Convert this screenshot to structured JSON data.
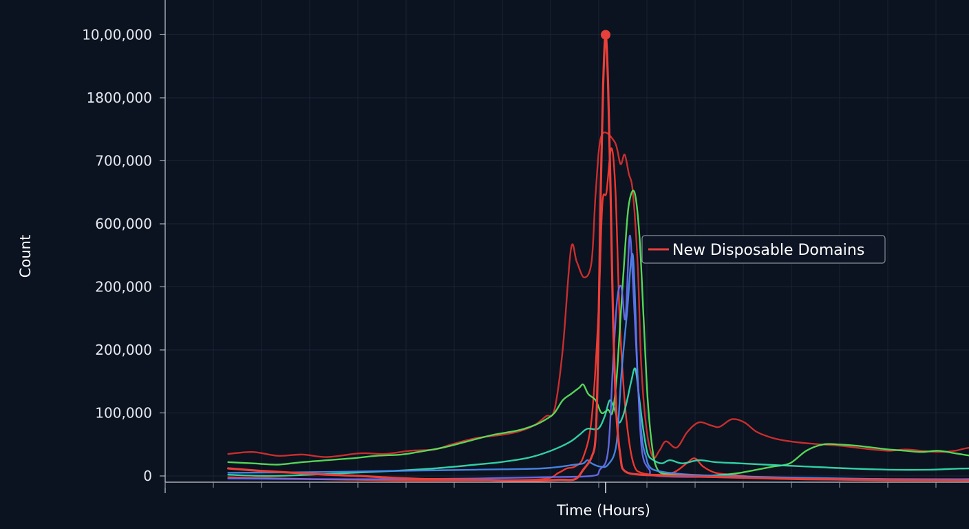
{
  "chart_data": {
    "type": "line",
    "xlabel": "Time (Hours)",
    "ylabel": "Count",
    "y_tick_labels": [
      "0",
      "100,000",
      "200,000",
      "200,000",
      "600,000",
      "700,000",
      "1800,000",
      "10,00,000"
    ],
    "ylim": [
      0,
      7
    ],
    "xlim": [
      0,
      100
    ],
    "grid": true,
    "legend": {
      "placement": "right",
      "entries": [
        "New Disposable Domains"
      ]
    },
    "series": [
      {
        "name": "New Disposable Domains",
        "color": "#e8403a",
        "peak_marker": true,
        "points": [
          [
            0,
            0.12
          ],
          [
            4,
            0.08
          ],
          [
            8,
            0.05
          ],
          [
            12,
            0.02
          ],
          [
            16,
            0.0
          ],
          [
            20,
            -0.03
          ],
          [
            24,
            -0.05
          ],
          [
            30,
            -0.06
          ],
          [
            36,
            -0.08
          ],
          [
            40,
            -0.06
          ],
          [
            42,
            -0.05
          ],
          [
            43,
            0.1
          ],
          [
            44,
            0.3
          ],
          [
            44.5,
            0.65
          ],
          [
            44.8,
            2.0
          ],
          [
            45.1,
            4.5
          ],
          [
            45.4,
            6.2
          ],
          [
            45.7,
            7.0
          ],
          [
            46.0,
            6.2
          ],
          [
            46.3,
            4.5
          ],
          [
            46.6,
            2.5
          ],
          [
            47,
            1.0
          ],
          [
            47.5,
            0.3
          ],
          [
            48,
            0.08
          ],
          [
            50,
            0.02
          ],
          [
            55,
            0.0
          ],
          [
            60,
            -0.02
          ],
          [
            70,
            -0.05
          ],
          [
            80,
            -0.06
          ],
          [
            90,
            -0.07
          ],
          [
            100,
            -0.07
          ]
        ]
      },
      {
        "color": "#d9312f",
        "points": [
          [
            0,
            0.35
          ],
          [
            3,
            0.38
          ],
          [
            6,
            0.32
          ],
          [
            9,
            0.34
          ],
          [
            12,
            0.3
          ],
          [
            16,
            0.36
          ],
          [
            19,
            0.35
          ],
          [
            22,
            0.4
          ],
          [
            25,
            0.42
          ],
          [
            27,
            0.5
          ],
          [
            30,
            0.6
          ],
          [
            33,
            0.65
          ],
          [
            35,
            0.7
          ],
          [
            37,
            0.8
          ],
          [
            38.5,
            0.95
          ],
          [
            39.5,
            1.05
          ],
          [
            40.5,
            2.0
          ],
          [
            41.5,
            3.6
          ],
          [
            42.2,
            3.4
          ],
          [
            43.1,
            3.15
          ],
          [
            44,
            3.4
          ],
          [
            44.5,
            4.5
          ],
          [
            45.2,
            5.4
          ],
          [
            46.8,
            5.3
          ],
          [
            47.5,
            4.95
          ],
          [
            48,
            5.1
          ],
          [
            48.5,
            4.8
          ],
          [
            49,
            4.5
          ],
          [
            49.6,
            3.3
          ],
          [
            50,
            1.8
          ],
          [
            50.6,
            0.8
          ],
          [
            51.4,
            0.3
          ],
          [
            52.2,
            0.4
          ],
          [
            53,
            0.55
          ],
          [
            54.3,
            0.45
          ],
          [
            55.6,
            0.7
          ],
          [
            57,
            0.85
          ],
          [
            58.5,
            0.8
          ],
          [
            59.5,
            0.78
          ],
          [
            61,
            0.9
          ],
          [
            62.5,
            0.85
          ],
          [
            64,
            0.7
          ],
          [
            66,
            0.6
          ],
          [
            68,
            0.55
          ],
          [
            70,
            0.52
          ],
          [
            72,
            0.5
          ],
          [
            74,
            0.48
          ],
          [
            76,
            0.45
          ],
          [
            78,
            0.42
          ],
          [
            80,
            0.4
          ],
          [
            82,
            0.42
          ],
          [
            84,
            0.4
          ],
          [
            86,
            0.38
          ],
          [
            88,
            0.4
          ],
          [
            90,
            0.45
          ],
          [
            92,
            0.4
          ],
          [
            94,
            0.42
          ],
          [
            96,
            0.4
          ],
          [
            98,
            0.4
          ],
          [
            100,
            0.38
          ]
        ]
      },
      {
        "color": "#ff3b30",
        "points": [
          [
            0,
            -0.02
          ],
          [
            10,
            -0.05
          ],
          [
            20,
            -0.07
          ],
          [
            30,
            -0.07
          ],
          [
            38,
            -0.05
          ],
          [
            40,
            0.05
          ],
          [
            41,
            0.12
          ],
          [
            42,
            0.15
          ],
          [
            43,
            0.3
          ],
          [
            44,
            0.9
          ],
          [
            44.8,
            2.5
          ],
          [
            45.3,
            4.3
          ],
          [
            45.8,
            4.5
          ],
          [
            46.4,
            5.2
          ],
          [
            46.9,
            4.5
          ],
          [
            47.4,
            2.5
          ],
          [
            48,
            1.2
          ],
          [
            48.6,
            0.5
          ],
          [
            49.2,
            0.15
          ],
          [
            50,
            0.05
          ],
          [
            52,
            0.02
          ],
          [
            54,
            0.06
          ],
          [
            55.5,
            0.2
          ],
          [
            56.5,
            0.28
          ],
          [
            57.5,
            0.15
          ],
          [
            59,
            0.05
          ],
          [
            61,
            0.02
          ],
          [
            65,
            -0.03
          ],
          [
            70,
            -0.05
          ],
          [
            80,
            -0.07
          ],
          [
            90,
            -0.07
          ],
          [
            100,
            -0.07
          ]
        ]
      },
      {
        "color": "#5ce65c",
        "points": [
          [
            0,
            0.22
          ],
          [
            3,
            0.2
          ],
          [
            6,
            0.18
          ],
          [
            9,
            0.22
          ],
          [
            12,
            0.25
          ],
          [
            15,
            0.28
          ],
          [
            18,
            0.32
          ],
          [
            21,
            0.34
          ],
          [
            23,
            0.38
          ],
          [
            26,
            0.45
          ],
          [
            29,
            0.55
          ],
          [
            32,
            0.65
          ],
          [
            35,
            0.72
          ],
          [
            37,
            0.8
          ],
          [
            38.5,
            0.9
          ],
          [
            39.5,
            1.0
          ],
          [
            40.5,
            1.2
          ],
          [
            41.5,
            1.3
          ],
          [
            42.5,
            1.4
          ],
          [
            43,
            1.45
          ],
          [
            43.6,
            1.3
          ],
          [
            44.5,
            1.2
          ],
          [
            45.2,
            1.0
          ],
          [
            46,
            1.05
          ],
          [
            46.5,
            1.0
          ],
          [
            47,
            1.5
          ],
          [
            47.5,
            2.5
          ],
          [
            48,
            3.5
          ],
          [
            48.5,
            4.3
          ],
          [
            49.2,
            4.5
          ],
          [
            49.8,
            3.8
          ],
          [
            50.3,
            2.5
          ],
          [
            50.8,
            1.2
          ],
          [
            51.4,
            0.4
          ],
          [
            52,
            0.1
          ],
          [
            53,
            0.03
          ],
          [
            55,
            0.02
          ],
          [
            57,
            0.0
          ],
          [
            60,
            0.02
          ],
          [
            62,
            0.05
          ],
          [
            64,
            0.1
          ],
          [
            66,
            0.15
          ],
          [
            68,
            0.2
          ],
          [
            70,
            0.4
          ],
          [
            72,
            0.5
          ],
          [
            74,
            0.5
          ],
          [
            76,
            0.48
          ],
          [
            78,
            0.45
          ],
          [
            80,
            0.42
          ],
          [
            82,
            0.4
          ],
          [
            84,
            0.38
          ],
          [
            86,
            0.4
          ],
          [
            88,
            0.36
          ],
          [
            90,
            0.32
          ],
          [
            92,
            0.3
          ],
          [
            94,
            0.35
          ],
          [
            96,
            0.38
          ],
          [
            98,
            0.4
          ],
          [
            100,
            0.35
          ]
        ]
      },
      {
        "color": "#35e0b0",
        "points": [
          [
            0,
            0.02
          ],
          [
            5,
            0.0
          ],
          [
            10,
            0.02
          ],
          [
            15,
            0.05
          ],
          [
            20,
            0.08
          ],
          [
            25,
            0.12
          ],
          [
            30,
            0.18
          ],
          [
            33,
            0.22
          ],
          [
            36,
            0.28
          ],
          [
            38,
            0.35
          ],
          [
            40,
            0.45
          ],
          [
            41.5,
            0.55
          ],
          [
            42.5,
            0.65
          ],
          [
            43.5,
            0.75
          ],
          [
            44.8,
            0.75
          ],
          [
            45.6,
            0.95
          ],
          [
            46.2,
            1.2
          ],
          [
            46.8,
            1.05
          ],
          [
            47.3,
            0.85
          ],
          [
            47.8,
            0.95
          ],
          [
            48.3,
            1.2
          ],
          [
            48.8,
            1.5
          ],
          [
            49.3,
            1.7
          ],
          [
            49.8,
            1.2
          ],
          [
            50.3,
            0.7
          ],
          [
            50.8,
            0.35
          ],
          [
            51.5,
            0.25
          ],
          [
            52.5,
            0.2
          ],
          [
            53.5,
            0.25
          ],
          [
            55,
            0.2
          ],
          [
            57,
            0.25
          ],
          [
            59,
            0.22
          ],
          [
            62,
            0.2
          ],
          [
            65,
            0.18
          ],
          [
            70,
            0.15
          ],
          [
            75,
            0.12
          ],
          [
            80,
            0.1
          ],
          [
            85,
            0.1
          ],
          [
            90,
            0.12
          ],
          [
            95,
            0.1
          ],
          [
            100,
            0.1
          ]
        ]
      },
      {
        "color": "#4a8df0",
        "points": [
          [
            0,
            0.05
          ],
          [
            10,
            0.06
          ],
          [
            20,
            0.08
          ],
          [
            30,
            0.1
          ],
          [
            38,
            0.12
          ],
          [
            42,
            0.18
          ],
          [
            43,
            0.2
          ],
          [
            43.5,
            0.25
          ],
          [
            44,
            0.2
          ],
          [
            45,
            0.15
          ],
          [
            46,
            0.18
          ],
          [
            47,
            0.5
          ],
          [
            47.6,
            1.6
          ],
          [
            48.3,
            2.6
          ],
          [
            49,
            3.5
          ],
          [
            49.6,
            1.5
          ],
          [
            50.1,
            0.6
          ],
          [
            50.6,
            0.3
          ],
          [
            51,
            0.15
          ],
          [
            52,
            0.08
          ],
          [
            55,
            0.03
          ],
          [
            60,
            0.0
          ],
          [
            70,
            -0.03
          ],
          [
            80,
            -0.05
          ],
          [
            90,
            -0.05
          ],
          [
            100,
            -0.04
          ]
        ]
      },
      {
        "color": "#6a6ff0",
        "points": [
          [
            0,
            -0.04
          ],
          [
            10,
            -0.05
          ],
          [
            20,
            -0.05
          ],
          [
            30,
            -0.04
          ],
          [
            38,
            -0.02
          ],
          [
            44,
            0.0
          ],
          [
            45,
            0.1
          ],
          [
            46,
            0.4
          ],
          [
            46.6,
            1.8
          ],
          [
            47.1,
            2.8
          ],
          [
            47.6,
            3.0
          ],
          [
            48.1,
            2.5
          ],
          [
            48.6,
            3.8
          ],
          [
            49,
            3.1
          ],
          [
            49.6,
            1.5
          ],
          [
            50.1,
            0.4
          ],
          [
            51,
            0.1
          ],
          [
            52,
            0.0
          ],
          [
            60,
            -0.02
          ],
          [
            70,
            -0.04
          ],
          [
            80,
            -0.05
          ],
          [
            100,
            -0.05
          ]
        ]
      }
    ]
  }
}
